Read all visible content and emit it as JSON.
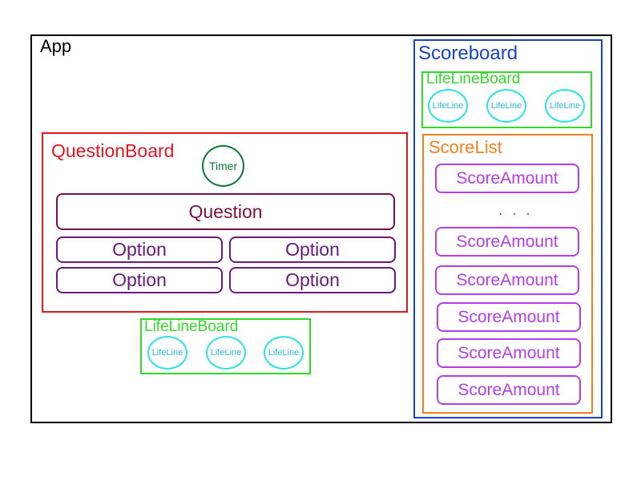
{
  "app": {
    "label": "App"
  },
  "question_board": {
    "label": "QuestionBoard",
    "timer": "Timer",
    "question": "Question",
    "options": [
      "Option",
      "Option",
      "Option",
      "Option"
    ]
  },
  "lifeline_board_bottom": {
    "label": "LifeLineBoard",
    "lifelines": [
      "LifeLine",
      "LifeLine",
      "LifeLine"
    ]
  },
  "scoreboard": {
    "label": "Scoreboard",
    "lifeline_board": {
      "label": "LifeLineBoard",
      "lifelines": [
        "LifeLine",
        "LifeLine",
        "LifeLine"
      ]
    },
    "score_list": {
      "label": "ScoreList",
      "ellipsis": ". . .",
      "items": [
        "ScoreAmount",
        "ScoreAmount",
        "ScoreAmount",
        "ScoreAmount",
        "ScoreAmount",
        "ScoreAmount"
      ]
    }
  },
  "colors": {
    "app": "#000000",
    "question_board": "#e8151f",
    "timer": "#0b7a3a",
    "question": "#7a1045",
    "option": "#6a1a7a",
    "lifeline_board": "#35d92a",
    "lifeline": "#2ee0e8",
    "scoreboard": "#1a44c8",
    "score_list": "#f07f1e",
    "score_amount": "#b53ee8"
  }
}
